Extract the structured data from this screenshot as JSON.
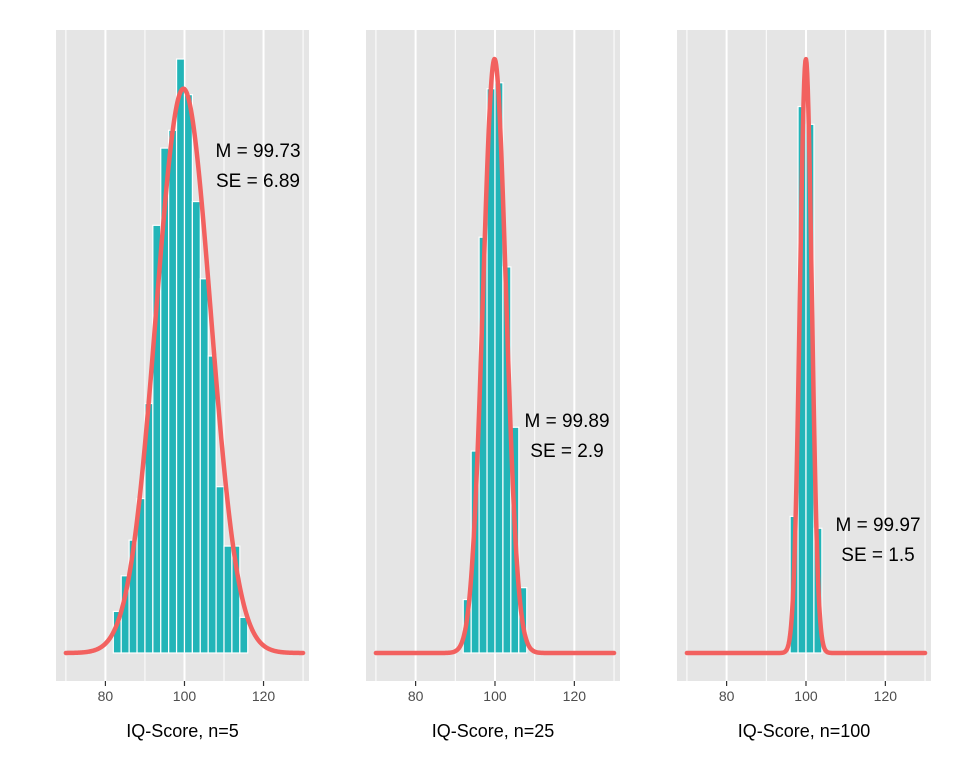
{
  "chart_data": [
    {
      "type": "bar",
      "xlabel": "IQ-Score, n=5",
      "xlim": [
        67.5,
        131.5
      ],
      "xticks": [
        80,
        100,
        120
      ],
      "bin_width": 2,
      "bins": [
        {
          "x": 83,
          "h": 0.07
        },
        {
          "x": 85,
          "h": 0.13
        },
        {
          "x": 87,
          "h": 0.19
        },
        {
          "x": 89,
          "h": 0.26
        },
        {
          "x": 91,
          "h": 0.42
        },
        {
          "x": 93,
          "h": 0.72
        },
        {
          "x": 95,
          "h": 0.85
        },
        {
          "x": 97,
          "h": 0.88
        },
        {
          "x": 99,
          "h": 1.0
        },
        {
          "x": 101,
          "h": 0.94
        },
        {
          "x": 103,
          "h": 0.76
        },
        {
          "x": 105,
          "h": 0.63
        },
        {
          "x": 107,
          "h": 0.5
        },
        {
          "x": 109,
          "h": 0.28
        },
        {
          "x": 111,
          "h": 0.18
        },
        {
          "x": 113,
          "h": 0.18
        },
        {
          "x": 115,
          "h": 0.06
        }
      ],
      "curve": {
        "mean": 99.73,
        "sd": 6.89,
        "peak": 0.95
      },
      "annotation": {
        "mean_text": "M = 99.73",
        "se_text": "SE = 6.89"
      }
    },
    {
      "type": "bar",
      "xlabel": "IQ-Score, n=25",
      "xlim": [
        67.5,
        131.5
      ],
      "xticks": [
        80,
        100,
        120
      ],
      "bin_width": 2,
      "bins": [
        {
          "x": 93,
          "h": 0.09
        },
        {
          "x": 95,
          "h": 0.34
        },
        {
          "x": 97,
          "h": 0.7
        },
        {
          "x": 99,
          "h": 0.95
        },
        {
          "x": 101,
          "h": 0.96
        },
        {
          "x": 103,
          "h": 0.65
        },
        {
          "x": 105,
          "h": 0.38
        },
        {
          "x": 107,
          "h": 0.11
        }
      ],
      "curve": {
        "mean": 99.89,
        "sd": 2.9,
        "peak": 1.0
      },
      "annotation": {
        "mean_text": "M = 99.89",
        "se_text": "SE = 2.9"
      }
    },
    {
      "type": "bar",
      "xlabel": "IQ-Score, n=100",
      "xlim": [
        67.5,
        131.5
      ],
      "xticks": [
        80,
        100,
        120
      ],
      "bin_width": 2,
      "bins": [
        {
          "x": 97,
          "h": 0.23
        },
        {
          "x": 99,
          "h": 0.92
        },
        {
          "x": 101,
          "h": 0.89
        },
        {
          "x": 103,
          "h": 0.21
        }
      ],
      "curve": {
        "mean": 99.97,
        "sd": 1.5,
        "peak": 1.0
      },
      "annotation": {
        "mean_text": "M = 99.97",
        "se_text": "SE = 1.5"
      }
    }
  ],
  "colors": {
    "panel_bg": "#e5e5e5",
    "grid": "#ffffff",
    "bar_fill": "#22b5b8",
    "bar_outline": "#ffffff",
    "curve": "#f2615f",
    "tick": "#333333"
  }
}
